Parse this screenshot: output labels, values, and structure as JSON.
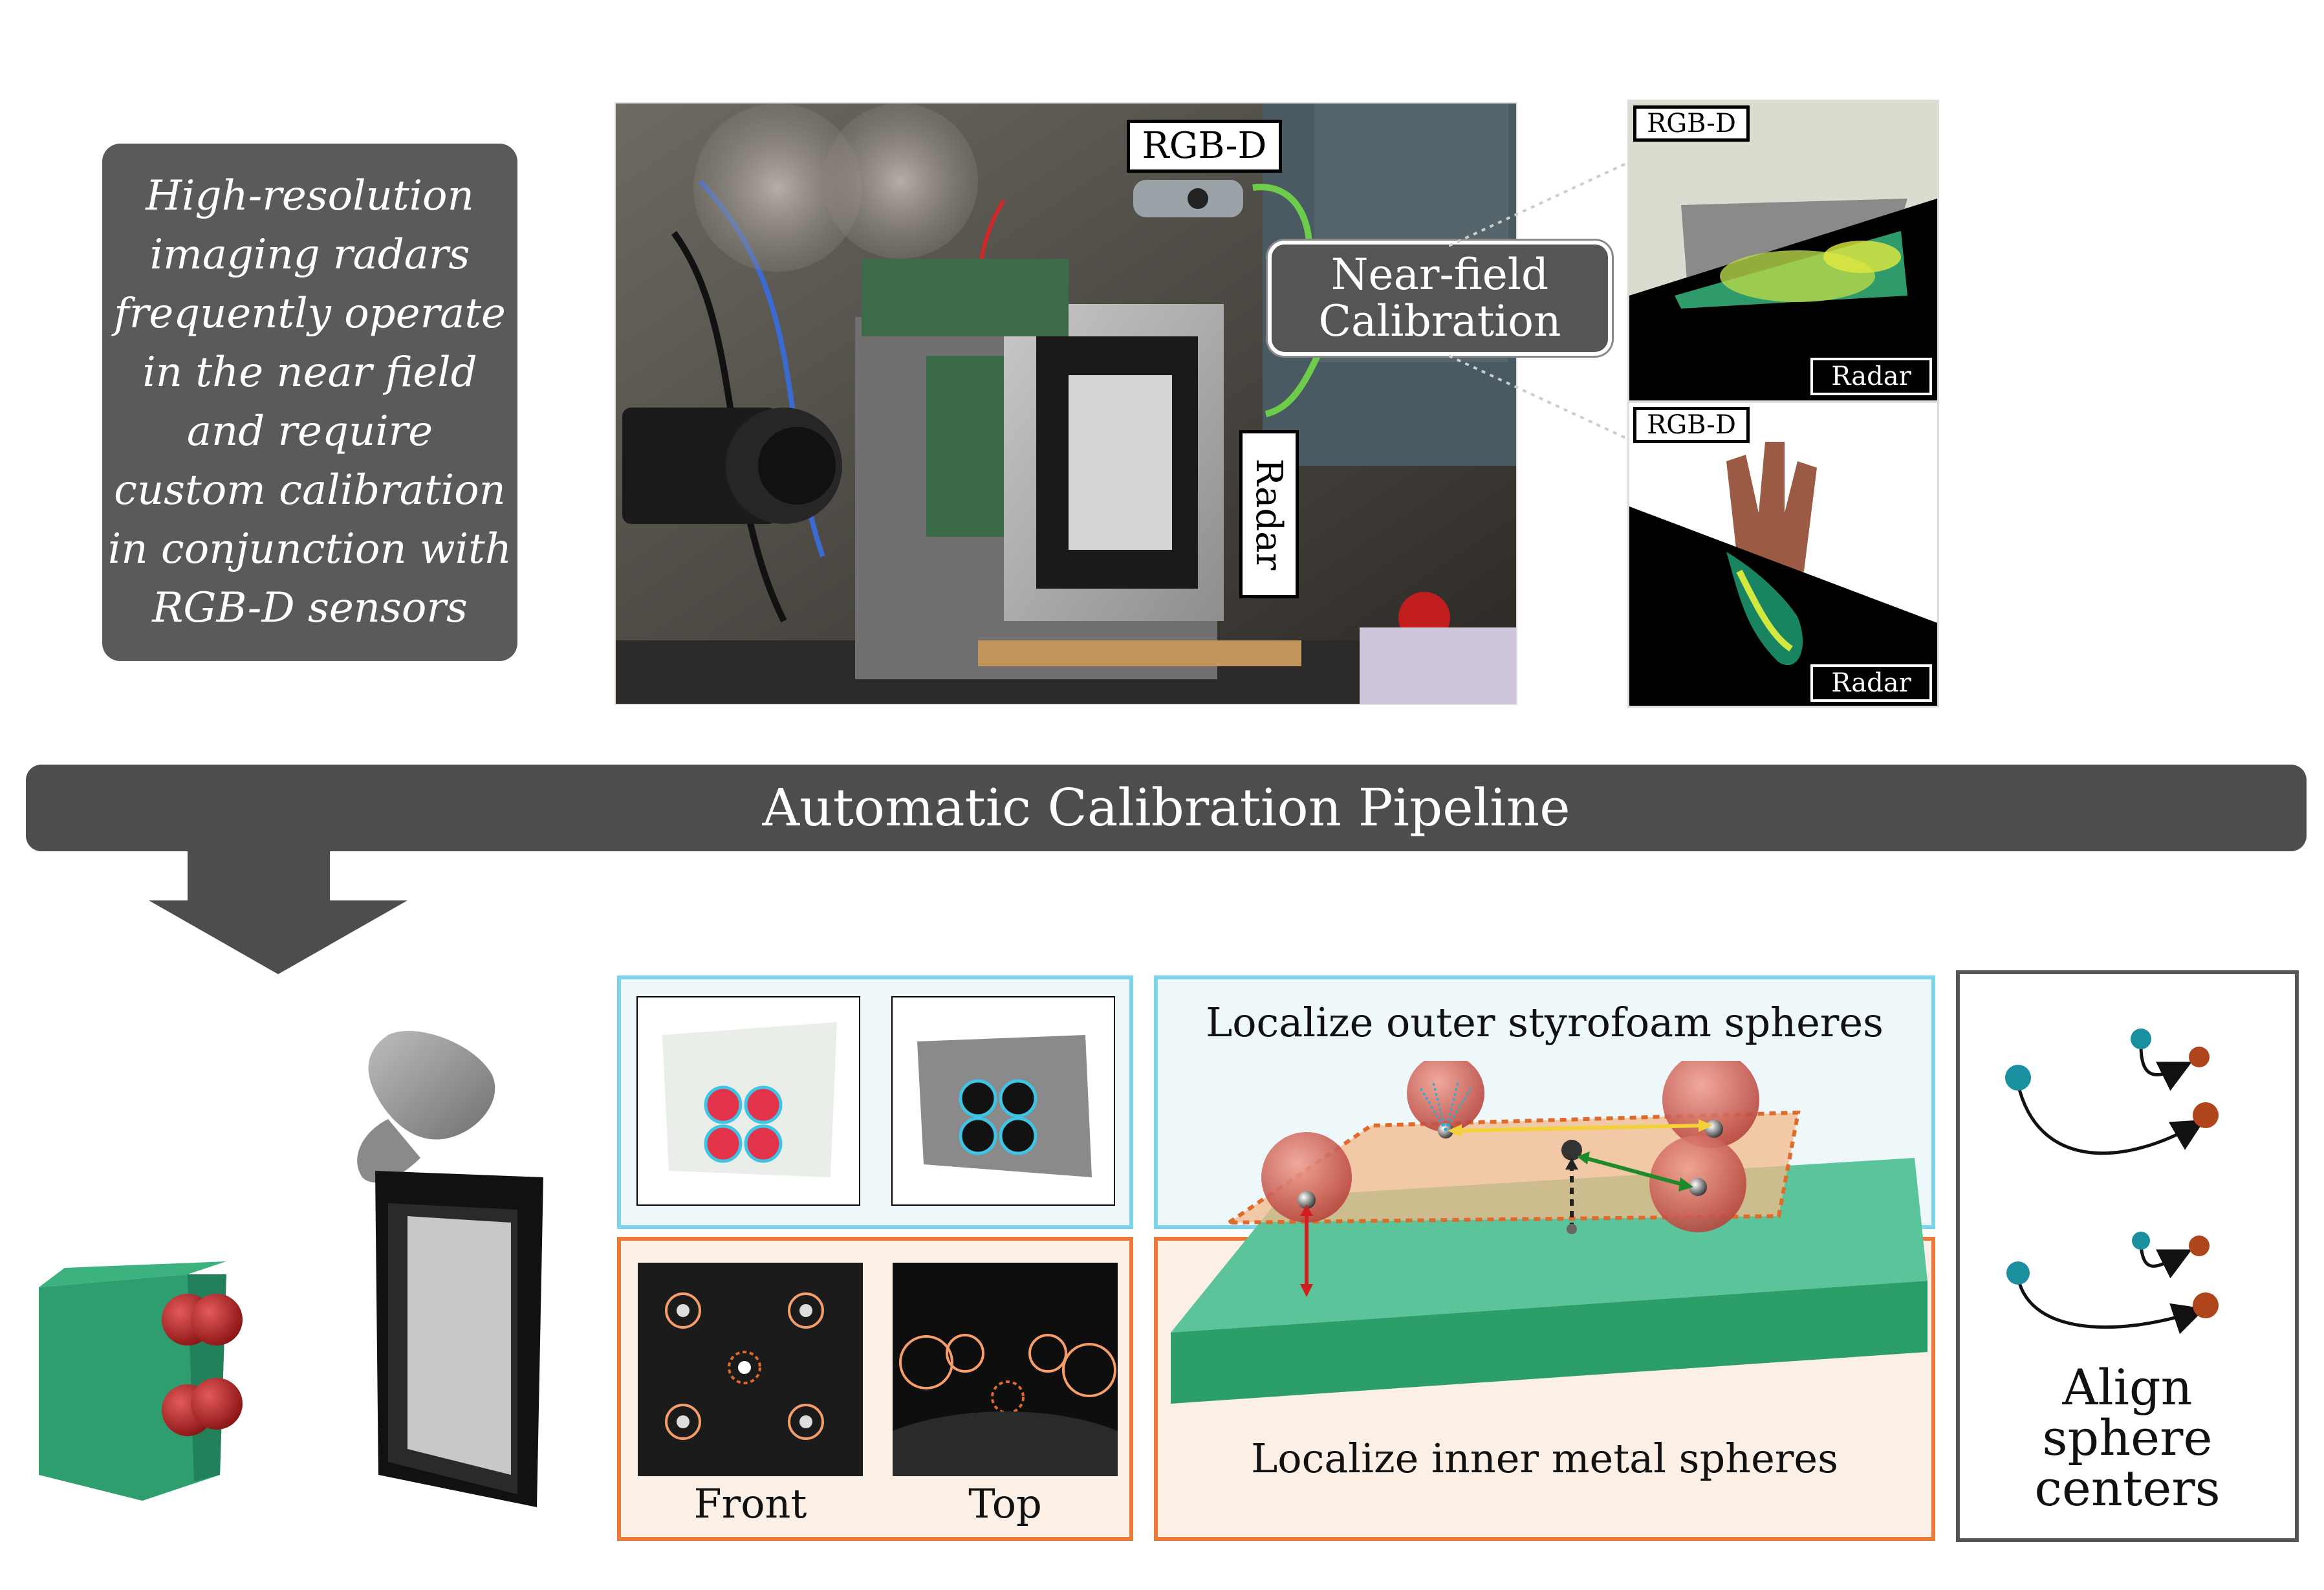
{
  "intro": {
    "lines": [
      "High-resolution",
      "imaging radars",
      "frequently operate",
      "in the near field",
      "and require",
      "custom calibration",
      "in conjunction with",
      "RGB-D sensors"
    ]
  },
  "photo": {
    "rgbd_label": "RGB-D",
    "radar_label": "Radar",
    "calibration_label_line1": "Near-field",
    "calibration_label_line2": "Calibration"
  },
  "thumbnails": [
    {
      "top_label": "RGB-D",
      "bottom_label": "Radar"
    },
    {
      "top_label": "RGB-D",
      "bottom_label": "Radar"
    }
  ],
  "pipeline": {
    "title": "Automatic Calibration Pipeline"
  },
  "detection": {
    "front_label": "Front",
    "top_label": "Top"
  },
  "localize": {
    "outer_label": "Localize outer styrofoam spheres",
    "inner_label": "Localize inner metal spheres"
  },
  "align": {
    "lines": [
      "Align",
      "sphere",
      "centers"
    ]
  },
  "colors": {
    "dark_box": "#5a5a5a",
    "pipeline_bar": "#4d4d4d",
    "panel_blue_border": "#7fd4ea",
    "panel_orange_border": "#ea7a3a",
    "green_block": "#2e9e6e",
    "sphere_red": "#c9303a",
    "sphere_teal": "#1a8fa0",
    "sphere_brown": "#b0441a",
    "arrow_green": "#66cc44"
  }
}
